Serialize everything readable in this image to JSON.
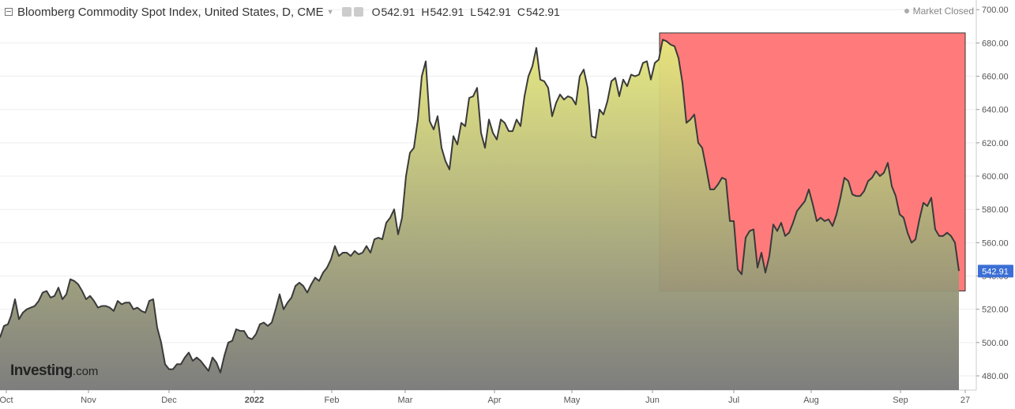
{
  "header": {
    "title": "Bloomberg Commodity Spot Index, United States, D, CME",
    "ohlc": [
      {
        "key": "O",
        "value": "542.91"
      },
      {
        "key": "H",
        "value": "542.91"
      },
      {
        "key": "L",
        "value": "542.91"
      },
      {
        "key": "C",
        "value": "542.91"
      }
    ],
    "market_status": "Market Closed"
  },
  "watermark": {
    "brand": "Investing",
    "suffix": ".com"
  },
  "chart_data": {
    "type": "area",
    "title": "Bloomberg Commodity Spot Index, United States, D, CME",
    "x_ticks": [
      "Oct",
      "Nov",
      "Dec",
      "2022",
      "Feb",
      "Mar",
      "Apr",
      "May",
      "Jun",
      "Jul",
      "Aug",
      "Sep",
      "27"
    ],
    "y_ticks": [
      "480.00",
      "500.00",
      "520.00",
      "540.00",
      "560.00",
      "580.00",
      "600.00",
      "620.00",
      "640.00",
      "660.00",
      "680.00",
      "700.00"
    ],
    "ylim": [
      472,
      712
    ],
    "last_value": "542.91",
    "highlight": {
      "from": "Jun",
      "y_range": [
        531,
        686
      ],
      "color": "#ff7b7b"
    },
    "colors": {
      "line": "#3a3a3a",
      "area_top": "#e6e87c",
      "area_bottom": "#777777",
      "badge": "#3b6fd6"
    },
    "series": [
      {
        "points": [
          [
            0,
            503
          ],
          [
            5,
            510
          ],
          [
            10,
            511
          ],
          [
            14,
            516
          ],
          [
            19,
            526
          ],
          [
            24,
            514
          ],
          [
            29,
            518
          ],
          [
            34,
            520
          ],
          [
            39,
            521
          ],
          [
            44,
            522
          ],
          [
            49,
            525
          ],
          [
            54,
            530
          ],
          [
            59,
            531
          ],
          [
            64,
            527
          ],
          [
            69,
            528
          ],
          [
            74,
            533
          ],
          [
            79,
            526
          ],
          [
            84,
            529
          ],
          [
            89,
            538
          ],
          [
            94,
            537
          ],
          [
            99,
            535
          ],
          [
            104,
            531
          ],
          [
            109,
            526
          ],
          [
            114,
            528
          ],
          [
            119,
            525
          ],
          [
            124,
            521
          ],
          [
            129,
            522
          ],
          [
            134,
            522
          ],
          [
            139,
            521
          ],
          [
            144,
            519
          ],
          [
            149,
            525
          ],
          [
            154,
            523
          ],
          [
            159,
            524
          ],
          [
            164,
            524
          ],
          [
            169,
            520
          ],
          [
            174,
            521
          ],
          [
            179,
            519
          ],
          [
            184,
            518
          ],
          [
            189,
            525
          ],
          [
            194,
            526
          ],
          [
            199,
            509
          ],
          [
            204,
            500
          ],
          [
            209,
            487
          ],
          [
            214,
            484
          ],
          [
            219,
            484
          ],
          [
            224,
            487
          ],
          [
            229,
            487
          ],
          [
            234,
            491
          ],
          [
            239,
            494
          ],
          [
            244,
            489
          ],
          [
            249,
            491
          ],
          [
            254,
            489
          ],
          [
            259,
            486
          ],
          [
            264,
            483
          ],
          [
            269,
            491
          ],
          [
            274,
            488
          ],
          [
            279,
            482
          ],
          [
            284,
            492
          ],
          [
            289,
            500
          ],
          [
            294,
            501
          ],
          [
            299,
            508
          ],
          [
            304,
            507
          ],
          [
            309,
            507
          ],
          [
            314,
            503
          ],
          [
            319,
            502
          ],
          [
            324,
            505
          ],
          [
            329,
            511
          ],
          [
            334,
            512
          ],
          [
            339,
            510
          ],
          [
            344,
            512
          ],
          [
            349,
            520
          ],
          [
            354,
            529
          ],
          [
            359,
            520
          ],
          [
            364,
            524
          ],
          [
            369,
            527
          ],
          [
            374,
            534
          ],
          [
            379,
            536
          ],
          [
            384,
            534
          ],
          [
            389,
            530
          ],
          [
            394,
            535
          ],
          [
            399,
            539
          ],
          [
            404,
            537
          ],
          [
            409,
            542
          ],
          [
            414,
            545
          ],
          [
            419,
            550
          ],
          [
            424,
            558
          ],
          [
            429,
            552
          ],
          [
            434,
            554
          ],
          [
            439,
            554
          ],
          [
            444,
            552
          ],
          [
            449,
            555
          ],
          [
            454,
            553
          ],
          [
            459,
            554
          ],
          [
            464,
            558
          ],
          [
            469,
            554
          ],
          [
            474,
            562
          ],
          [
            479,
            563
          ],
          [
            484,
            562
          ],
          [
            489,
            572
          ],
          [
            494,
            575
          ],
          [
            499,
            580
          ],
          [
            504,
            565
          ],
          [
            509,
            575
          ],
          [
            514,
            600
          ],
          [
            519,
            614
          ],
          [
            524,
            617
          ],
          [
            529,
            634
          ],
          [
            534,
            660
          ],
          [
            539,
            669
          ],
          [
            544,
            633
          ],
          [
            549,
            628
          ],
          [
            554,
            636
          ],
          [
            559,
            617
          ],
          [
            564,
            609
          ],
          [
            569,
            604
          ],
          [
            574,
            624
          ],
          [
            579,
            619
          ],
          [
            584,
            632
          ],
          [
            589,
            630
          ],
          [
            594,
            647
          ],
          [
            599,
            648
          ],
          [
            604,
            653
          ],
          [
            609,
            626
          ],
          [
            614,
            617
          ],
          [
            619,
            634
          ],
          [
            624,
            626
          ],
          [
            629,
            622
          ],
          [
            634,
            634
          ],
          [
            639,
            632
          ],
          [
            644,
            627
          ],
          [
            649,
            627
          ],
          [
            654,
            634
          ],
          [
            659,
            630
          ],
          [
            664,
            648
          ],
          [
            669,
            660
          ],
          [
            674,
            666
          ],
          [
            679,
            677
          ],
          [
            684,
            658
          ],
          [
            689,
            657
          ],
          [
            694,
            653
          ],
          [
            699,
            636
          ],
          [
            704,
            644
          ],
          [
            709,
            649
          ],
          [
            714,
            646
          ],
          [
            719,
            648
          ],
          [
            724,
            647
          ],
          [
            729,
            643
          ],
          [
            734,
            660
          ],
          [
            739,
            664
          ],
          [
            744,
            653
          ],
          [
            749,
            624
          ],
          [
            754,
            623
          ],
          [
            759,
            640
          ],
          [
            764,
            637
          ],
          [
            769,
            645
          ],
          [
            774,
            657
          ],
          [
            779,
            659
          ],
          [
            784,
            648
          ],
          [
            789,
            658
          ],
          [
            794,
            654
          ],
          [
            799,
            661
          ],
          [
            804,
            660
          ],
          [
            809,
            661
          ],
          [
            814,
            668
          ],
          [
            819,
            669
          ],
          [
            824,
            658
          ],
          [
            829,
            668
          ],
          [
            834,
            670
          ],
          [
            839,
            682
          ],
          [
            844,
            681
          ],
          [
            849,
            679
          ],
          [
            854,
            678
          ],
          [
            859,
            671
          ],
          [
            864,
            656
          ],
          [
            869,
            632
          ],
          [
            874,
            634
          ],
          [
            879,
            637
          ],
          [
            884,
            620
          ],
          [
            889,
            617
          ],
          [
            894,
            605
          ],
          [
            899,
            592
          ],
          [
            904,
            592
          ],
          [
            909,
            595
          ],
          [
            914,
            599
          ],
          [
            919,
            598
          ],
          [
            924,
            573
          ],
          [
            929,
            573
          ],
          [
            934,
            544
          ],
          [
            939,
            541
          ],
          [
            944,
            563
          ],
          [
            949,
            567
          ],
          [
            954,
            568
          ],
          [
            959,
            545
          ],
          [
            964,
            554
          ],
          [
            969,
            542
          ],
          [
            974,
            552
          ],
          [
            979,
            571
          ],
          [
            984,
            567
          ],
          [
            989,
            572
          ],
          [
            994,
            564
          ],
          [
            999,
            566
          ],
          [
            1004,
            572
          ],
          [
            1009,
            579
          ],
          [
            1014,
            582
          ],
          [
            1019,
            585
          ],
          [
            1024,
            592
          ],
          [
            1029,
            583
          ],
          [
            1034,
            573
          ],
          [
            1039,
            575
          ],
          [
            1044,
            573
          ],
          [
            1049,
            574
          ],
          [
            1054,
            570
          ],
          [
            1059,
            577
          ],
          [
            1064,
            587
          ],
          [
            1069,
            599
          ],
          [
            1074,
            597
          ],
          [
            1079,
            589
          ],
          [
            1084,
            588
          ],
          [
            1089,
            588
          ],
          [
            1094,
            591
          ],
          [
            1099,
            597
          ],
          [
            1104,
            599
          ],
          [
            1109,
            603
          ],
          [
            1114,
            600
          ],
          [
            1119,
            602
          ],
          [
            1124,
            608
          ],
          [
            1129,
            594
          ],
          [
            1134,
            588
          ],
          [
            1139,
            577
          ],
          [
            1144,
            575
          ],
          [
            1149,
            566
          ],
          [
            1154,
            560
          ],
          [
            1159,
            562
          ],
          [
            1164,
            574
          ],
          [
            1169,
            584
          ],
          [
            1174,
            582
          ],
          [
            1179,
            587
          ],
          [
            1184,
            568
          ],
          [
            1189,
            564
          ],
          [
            1194,
            564
          ],
          [
            1199,
            566
          ],
          [
            1204,
            564
          ],
          [
            1209,
            560
          ],
          [
            1214,
            543
          ]
        ]
      }
    ]
  }
}
